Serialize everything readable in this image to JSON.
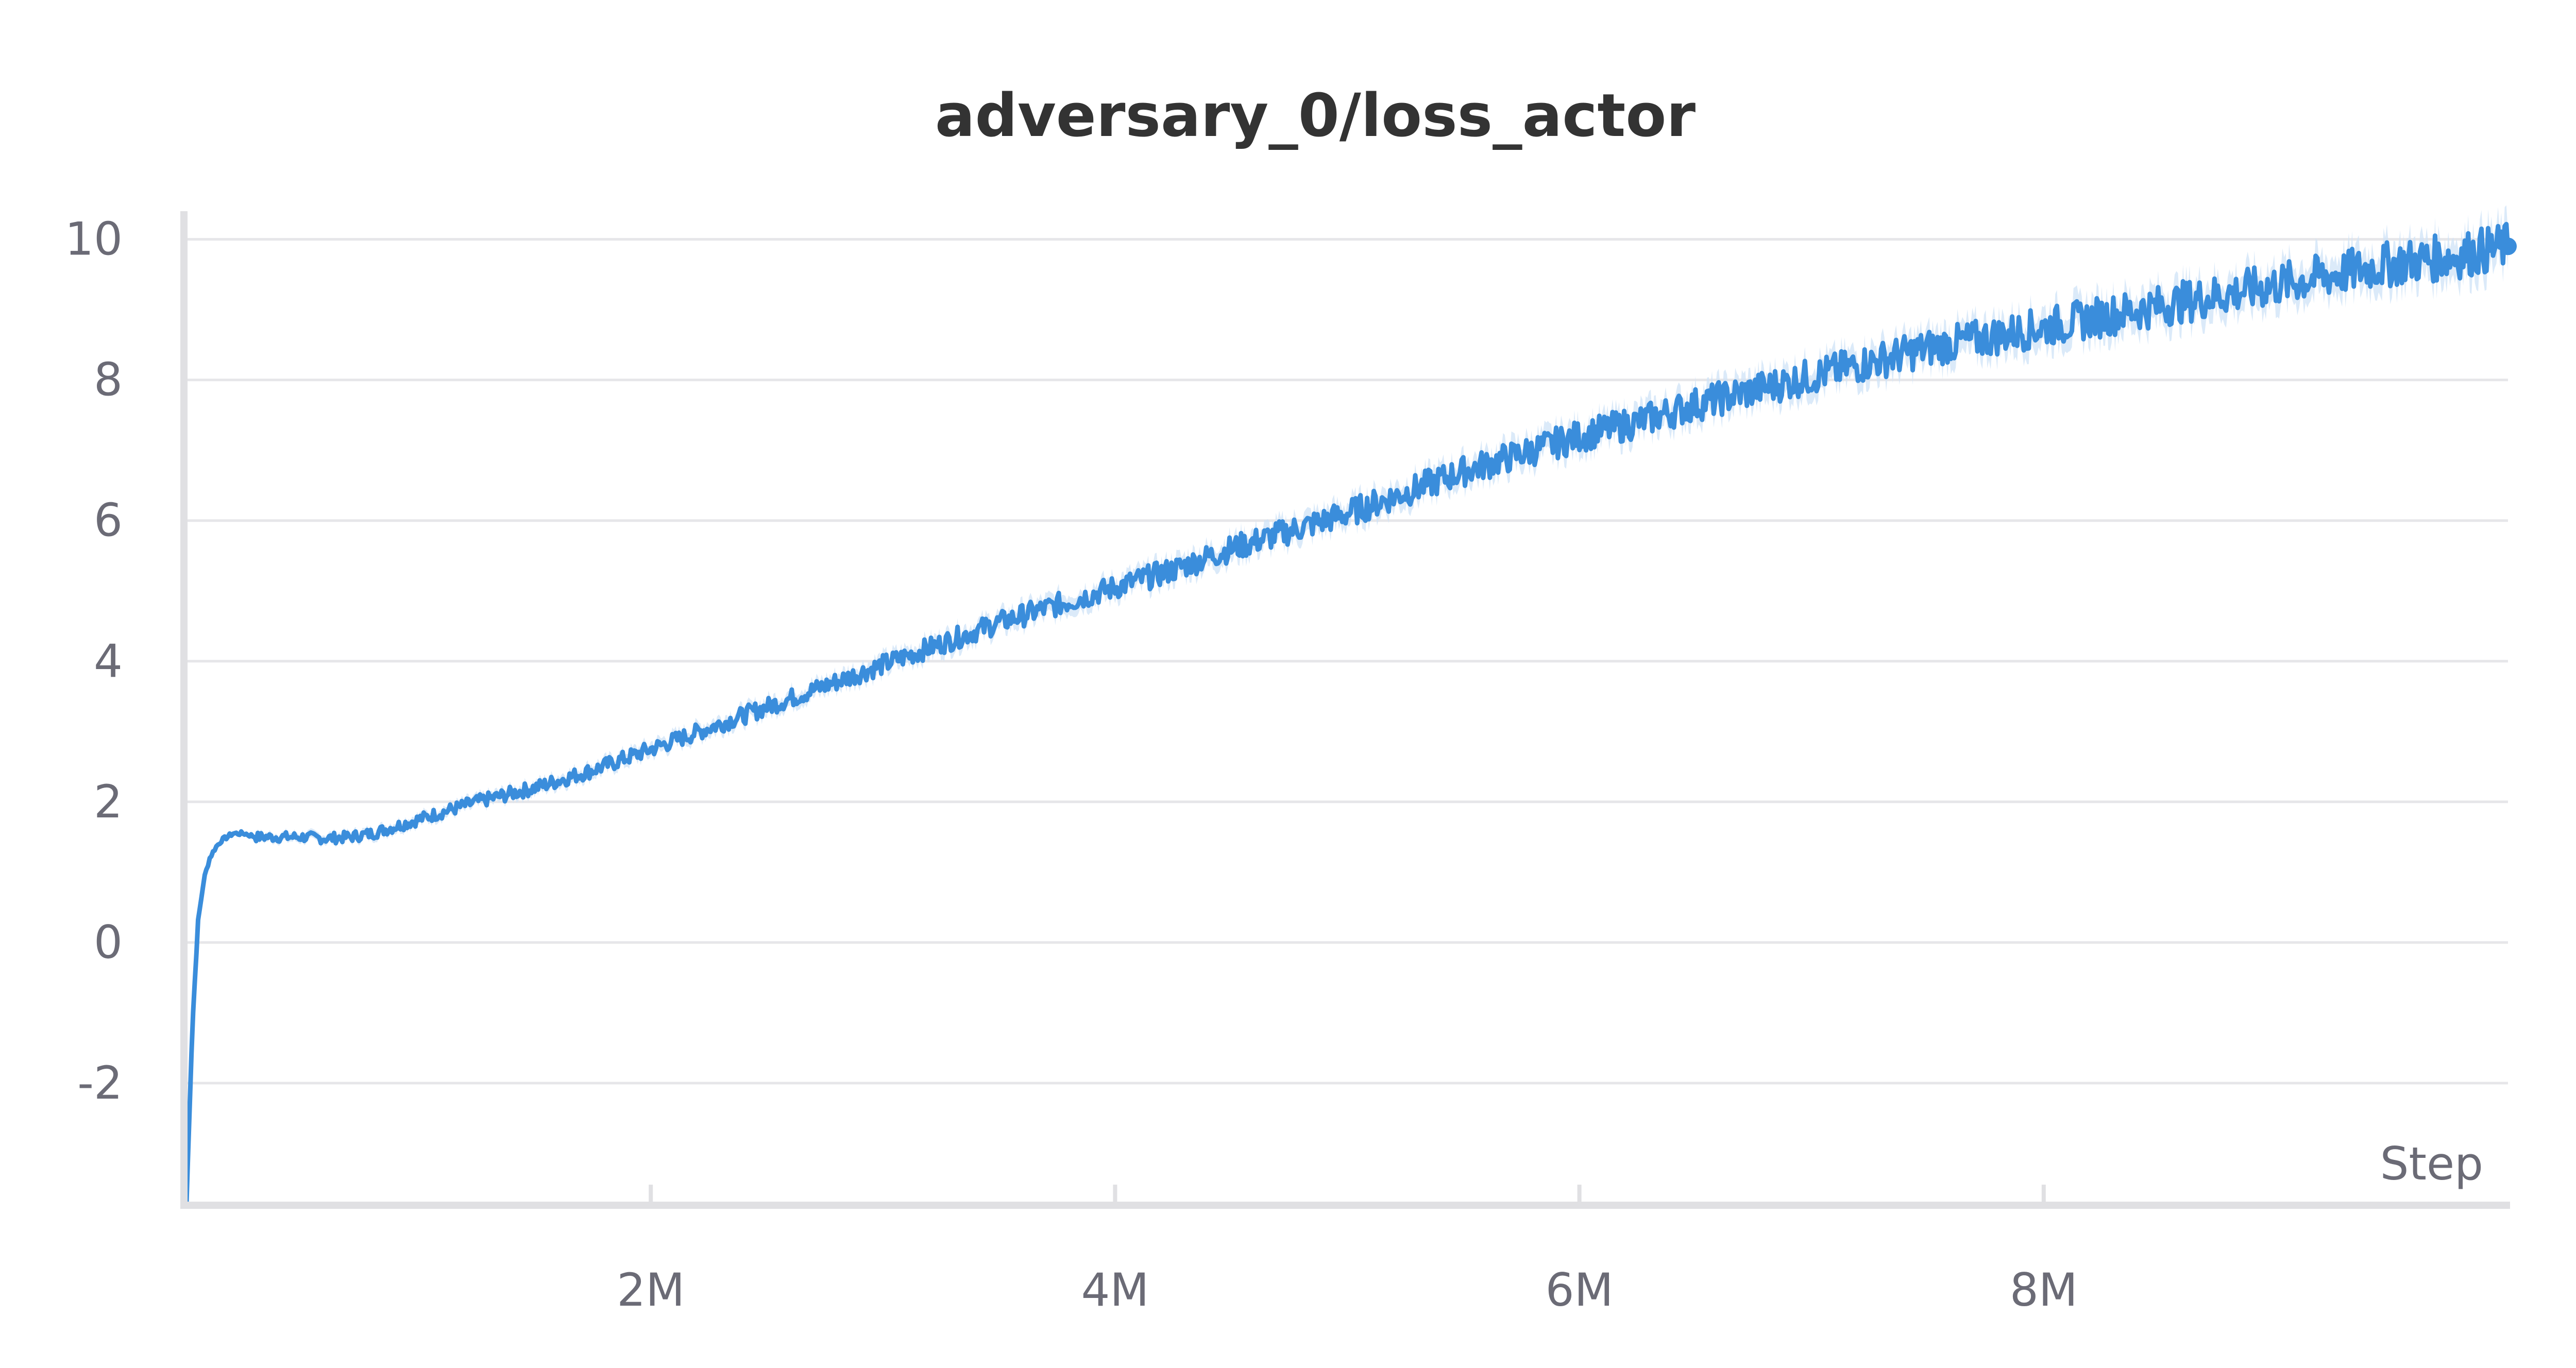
{
  "chart_data": {
    "type": "line",
    "title": "adversary_0/loss_actor",
    "xlabel": "Step",
    "ylabel": "",
    "xlim": [
      0,
      10000000
    ],
    "ylim": [
      -3.7,
      10.4
    ],
    "x_ticks": [
      {
        "value": 2000000,
        "label": "2M"
      },
      {
        "value": 4000000,
        "label": "4M"
      },
      {
        "value": 6000000,
        "label": "6M"
      },
      {
        "value": 8000000,
        "label": "8M"
      }
    ],
    "y_ticks": [
      {
        "value": 10,
        "label": "10"
      },
      {
        "value": 8,
        "label": "8"
      },
      {
        "value": 6,
        "label": "6"
      },
      {
        "value": 4,
        "label": "4"
      },
      {
        "value": 2,
        "label": "2"
      },
      {
        "value": 0,
        "label": "0"
      },
      {
        "value": -2,
        "label": "-2"
      }
    ],
    "grid": true,
    "colors": {
      "line": "#3a8ddb",
      "band": "#cfe3f7"
    },
    "series": [
      {
        "x": [
          0,
          25000,
          50000,
          75000,
          100000,
          125000,
          150000,
          200000,
          250000,
          300000,
          400000,
          500000,
          600000,
          700000,
          800000,
          900000,
          1000000,
          1250000,
          1500000,
          1750000,
          2000000,
          2250000,
          2500000,
          2750000,
          3000000,
          3250000,
          3500000,
          3750000,
          4000000,
          4250000,
          4500000,
          4750000,
          5000000,
          5250000,
          5500000,
          5750000,
          6000000,
          6250000,
          6500000,
          6750000,
          7000000,
          7250000,
          7500000,
          7750000,
          8000000,
          8250000,
          8500000,
          8750000,
          9000000,
          9250000,
          9500000,
          9750000,
          10000000
        ],
        "y": [
          -3.7,
          -1.2,
          0.3,
          0.9,
          1.2,
          1.35,
          1.45,
          1.55,
          1.55,
          1.5,
          1.5,
          1.5,
          1.48,
          1.5,
          1.55,
          1.65,
          1.75,
          2.0,
          2.2,
          2.45,
          2.75,
          3.05,
          3.35,
          3.65,
          3.95,
          4.25,
          4.55,
          4.8,
          5.05,
          5.3,
          5.6,
          5.85,
          6.1,
          6.4,
          6.7,
          6.95,
          7.2,
          7.4,
          7.65,
          7.85,
          8.05,
          8.25,
          8.45,
          8.6,
          8.75,
          8.9,
          9.05,
          9.2,
          9.35,
          9.5,
          9.65,
          9.75,
          9.9
        ]
      }
    ]
  }
}
